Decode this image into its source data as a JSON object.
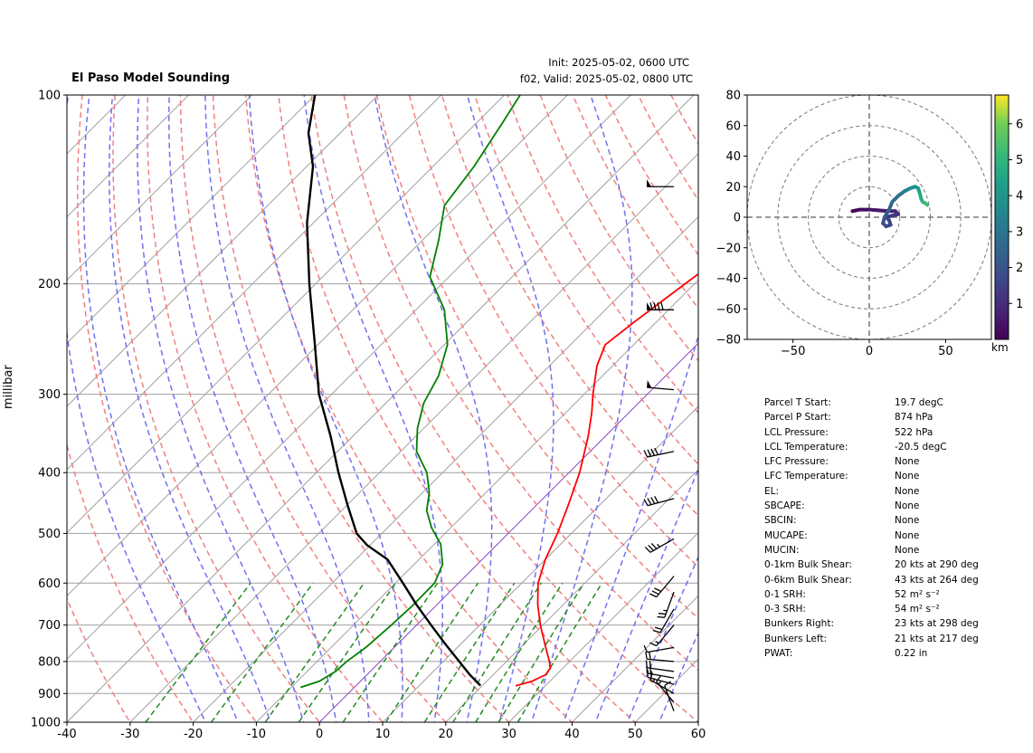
{
  "header": {
    "title": "El Paso Model Sounding",
    "init": "Init: 2025-05-02, 0600 UTC",
    "valid": "f02, Valid: 2025-05-02, 0800 UTC"
  },
  "chart_data": [
    {
      "type": "line",
      "subtype": "skew-t",
      "ylabel": "millibar",
      "xlabel": "",
      "xlim": [
        -40,
        60
      ],
      "ylim": [
        1000,
        100
      ],
      "y_log": true,
      "x_ticks": [
        -40,
        -30,
        -20,
        -10,
        0,
        10,
        20,
        30,
        40,
        50,
        60
      ],
      "y_ticks": [
        1000,
        900,
        800,
        700,
        600,
        500,
        400,
        300,
        200,
        100
      ],
      "grid": true,
      "colors": {
        "temperature": "#ff0000",
        "dewpoint": "#008000",
        "parcel": "#000000",
        "dry_adiabat": "#f08080",
        "moist_adiabat": "#7070f0",
        "mixing_ratio": "#228b22",
        "isotherm": "#a0a0a0",
        "zero_isotherm": "#8a3fc0"
      },
      "series": [
        {
          "id": "temperature",
          "points": [
            [
              875,
              25.3
            ],
            [
              860,
              27.2
            ],
            [
              840,
              28.3
            ],
            [
              820,
              28.0
            ],
            [
              800,
              26.8
            ],
            [
              760,
              24.0
            ],
            [
              700,
              19.6
            ],
            [
              650,
              16.0
            ],
            [
              600,
              12.6
            ],
            [
              550,
              10.0
            ],
            [
              500,
              7.8
            ],
            [
              450,
              5.0
            ],
            [
              400,
              1.7
            ],
            [
              350,
              -2.7
            ],
            [
              320,
              -6.0
            ],
            [
              300,
              -8.6
            ],
            [
              270,
              -12.5
            ],
            [
              250,
              -14.5
            ],
            [
              230,
              -13.5
            ],
            [
              200,
              -11.5
            ],
            [
              170,
              -9.0
            ],
            [
              150,
              -7.5
            ],
            [
              130,
              -4.8
            ],
            [
              110,
              -3.0
            ],
            [
              100,
              -2.0
            ]
          ]
        },
        {
          "id": "dewpoint",
          "points": [
            [
              880,
              -8.5
            ],
            [
              860,
              -6.5
            ],
            [
              830,
              -5.5
            ],
            [
              800,
              -5.3
            ],
            [
              760,
              -4.5
            ],
            [
              700,
              -4.0
            ],
            [
              650,
              -3.7
            ],
            [
              600,
              -3.8
            ],
            [
              560,
              -5.5
            ],
            [
              520,
              -9.0
            ],
            [
              490,
              -13.0
            ],
            [
              460,
              -16.5
            ],
            [
              430,
              -19.0
            ],
            [
              400,
              -22.5
            ],
            [
              370,
              -27.5
            ],
            [
              340,
              -31.0
            ],
            [
              310,
              -34.0
            ],
            [
              280,
              -36.0
            ],
            [
              250,
              -39.5
            ],
            [
              220,
              -45.5
            ],
            [
              195,
              -53.0
            ],
            [
              170,
              -57.5
            ],
            [
              150,
              -62.0
            ],
            [
              130,
              -63.5
            ],
            [
              110,
              -66.0
            ],
            [
              100,
              -67.5
            ]
          ]
        },
        {
          "id": "parcel",
          "points": [
            [
              874,
              19.7
            ],
            [
              840,
              16.3
            ],
            [
              800,
              12.5
            ],
            [
              750,
              7.5
            ],
            [
              700,
              2.3
            ],
            [
              650,
              -3.2
            ],
            [
              600,
              -8.8
            ],
            [
              550,
              -15.0
            ],
            [
              522,
              -20.5
            ],
            [
              500,
              -24.0
            ],
            [
              450,
              -30.0
            ],
            [
              400,
              -36.5
            ],
            [
              350,
              -43.5
            ],
            [
              300,
              -52.0
            ],
            [
              250,
              -60.5
            ],
            [
              200,
              -71.0
            ],
            [
              160,
              -81.0
            ],
            [
              130,
              -89.0
            ],
            [
              115,
              -95.0
            ],
            [
              100,
              -100.0
            ]
          ]
        }
      ],
      "wind_barbs": [
        {
          "p": 140,
          "speed_kt": 50,
          "dir_deg": 270
        },
        {
          "p": 220,
          "speed_kt": 90,
          "dir_deg": 270
        },
        {
          "p": 295,
          "speed_kt": 50,
          "dir_deg": 275
        },
        {
          "p": 370,
          "speed_kt": 40,
          "dir_deg": 258
        },
        {
          "p": 440,
          "speed_kt": 40,
          "dir_deg": 255
        },
        {
          "p": 510,
          "speed_kt": 35,
          "dir_deg": 240
        },
        {
          "p": 585,
          "speed_kt": 30,
          "dir_deg": 220
        },
        {
          "p": 620,
          "speed_kt": 25,
          "dir_deg": 200
        },
        {
          "p": 660,
          "speed_kt": 20,
          "dir_deg": 210
        },
        {
          "p": 700,
          "speed_kt": 15,
          "dir_deg": 220
        },
        {
          "p": 760,
          "speed_kt": 10,
          "dir_deg": 260
        },
        {
          "p": 800,
          "speed_kt": 20,
          "dir_deg": 275
        },
        {
          "p": 830,
          "speed_kt": 20,
          "dir_deg": 278
        },
        {
          "p": 850,
          "speed_kt": 20,
          "dir_deg": 280
        },
        {
          "p": 870,
          "speed_kt": 20,
          "dir_deg": 285
        },
        {
          "p": 900,
          "speed_kt": 15,
          "dir_deg": 300
        },
        {
          "p": 930,
          "speed_kt": 15,
          "dir_deg": 320
        },
        {
          "p": 960,
          "speed_kt": 10,
          "dir_deg": 340
        }
      ]
    },
    {
      "type": "scatter",
      "subtype": "hodograph",
      "xlim": [
        -80,
        80
      ],
      "ylim": [
        -80,
        80
      ],
      "x_ticks": [
        -50,
        0,
        50
      ],
      "y_ticks": [
        -80,
        -60,
        -40,
        -20,
        0,
        20,
        40,
        60,
        80
      ],
      "ring_radii": [
        20,
        40,
        60,
        80
      ],
      "colorbar_ticks": [
        1,
        2,
        3,
        4,
        5,
        6
      ],
      "colorbar_range": [
        0,
        6.8
      ],
      "colorbar_label": "km",
      "colormap": "viridis",
      "points": [
        {
          "u": -11,
          "v": 4,
          "km": 0.1
        },
        {
          "u": -6,
          "v": 5,
          "km": 0.2
        },
        {
          "u": 0,
          "v": 5,
          "km": 0.35
        },
        {
          "u": 6,
          "v": 4.5,
          "km": 0.5
        },
        {
          "u": 12,
          "v": 4,
          "km": 0.6
        },
        {
          "u": 17,
          "v": 4,
          "km": 0.8
        },
        {
          "u": 19,
          "v": 2,
          "km": 1.0
        },
        {
          "u": 15,
          "v": 1,
          "km": 1.2
        },
        {
          "u": 11,
          "v": 0,
          "km": 1.4
        },
        {
          "u": 13,
          "v": -2,
          "km": 1.5
        },
        {
          "u": 14,
          "v": -5,
          "km": 1.6
        },
        {
          "u": 11,
          "v": -6,
          "km": 1.7
        },
        {
          "u": 9,
          "v": -4,
          "km": 1.8
        },
        {
          "u": 10,
          "v": 0,
          "km": 2.0
        },
        {
          "u": 13,
          "v": 5,
          "km": 2.3
        },
        {
          "u": 15,
          "v": 10,
          "km": 2.6
        },
        {
          "u": 19,
          "v": 14,
          "km": 2.9
        },
        {
          "u": 23,
          "v": 17,
          "km": 3.2
        },
        {
          "u": 27,
          "v": 19,
          "km": 3.5
        },
        {
          "u": 30,
          "v": 20,
          "km": 3.8
        },
        {
          "u": 32,
          "v": 19,
          "km": 4.1
        },
        {
          "u": 33,
          "v": 16,
          "km": 4.4
        },
        {
          "u": 34,
          "v": 12,
          "km": 4.7
        },
        {
          "u": 35,
          "v": 10,
          "km": 5.0
        },
        {
          "u": 37,
          "v": 9,
          "km": 5.2
        },
        {
          "u": 38,
          "v": 8,
          "km": 5.4
        }
      ]
    }
  ],
  "parameters": [
    {
      "label": "Parcel T Start:",
      "value": "19.7 degC"
    },
    {
      "label": "Parcel P Start:",
      "value": "874 hPa"
    },
    {
      "label": "LCL Pressure:",
      "value": "522 hPa"
    },
    {
      "label": "LCL Temperature:",
      "value": "-20.5 degC"
    },
    {
      "label": "LFC Pressure:",
      "value": "None"
    },
    {
      "label": "LFC Temperature:",
      "value": "None"
    },
    {
      "label": "EL:",
      "value": "None"
    },
    {
      "label": "SBCAPE:",
      "value": "None"
    },
    {
      "label": "SBCIN:",
      "value": "None"
    },
    {
      "label": "MUCAPE:",
      "value": "None"
    },
    {
      "label": "MUCIN:",
      "value": "None"
    },
    {
      "label": "0-1km Bulk Shear:",
      "value": "20 kts at 290 deg"
    },
    {
      "label": "0-6km Bulk Shear:",
      "value": "43 kts at 264 deg"
    },
    {
      "label": "0-1 SRH:",
      "value": "52 m² s⁻²"
    },
    {
      "label": "0-3 SRH:",
      "value": "54 m² s⁻²"
    },
    {
      "label": "Bunkers Right:",
      "value": "23 kts at 298 deg"
    },
    {
      "label": "Bunkers Left:",
      "value": "21 kts at 217 deg"
    },
    {
      "label": "PWAT:",
      "value": "0.22 in"
    }
  ]
}
